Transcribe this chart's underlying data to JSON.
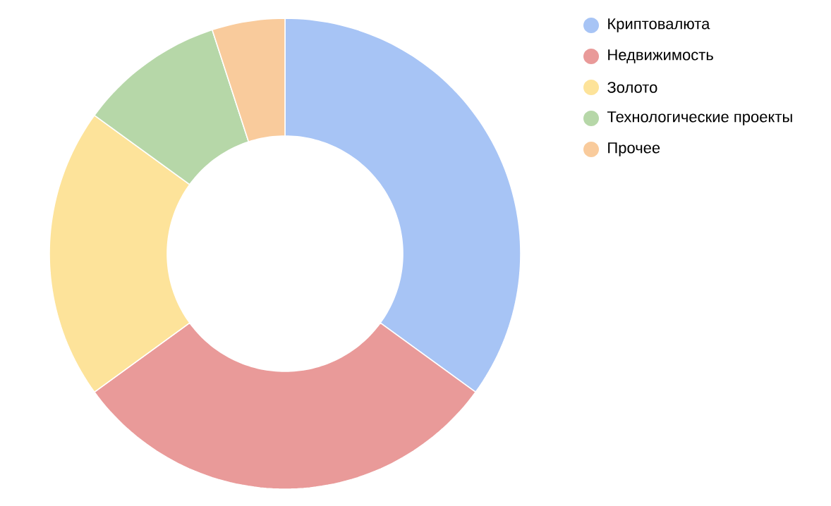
{
  "chart_data": {
    "type": "donut",
    "categories": [
      "Криптовалюта",
      "Недвижимость",
      "Золото",
      "Технологические проекты",
      "Прочее"
    ],
    "values": [
      35,
      30,
      20,
      10,
      5
    ],
    "colors": [
      "#a7c4f5",
      "#e99a99",
      "#fde39a",
      "#b6d7a8",
      "#f9cb9c"
    ],
    "legend": "top right"
  }
}
